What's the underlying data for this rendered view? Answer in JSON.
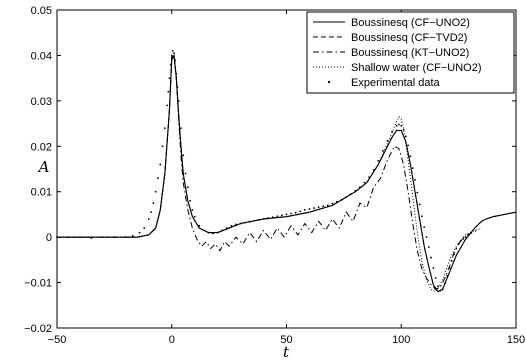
{
  "chart_data": {
    "type": "line",
    "title": "",
    "xlabel": "t",
    "ylabel": "A",
    "xlim": [
      -50,
      150
    ],
    "ylim": [
      -0.02,
      0.05
    ],
    "xticks": [
      "−50",
      "0",
      "50",
      "100",
      "150"
    ],
    "yticks": [
      "−0.02",
      "−0.01",
      "0",
      "0.01",
      "0.02",
      "0.03",
      "0.04",
      "0.05"
    ],
    "grid": false,
    "legend_position": "top-right",
    "series": [
      {
        "name": "Boussinesq (CF−UNO2)",
        "style": "solid",
        "x": [
          -50,
          -40,
          -30,
          -20,
          -15,
          -10,
          -7,
          -5,
          -3,
          -1,
          0,
          1,
          2,
          3,
          4,
          5,
          7,
          9,
          12,
          16,
          20,
          25,
          30,
          40,
          50,
          60,
          70,
          80,
          85,
          90,
          93,
          96,
          98,
          100,
          102,
          104,
          106,
          108,
          110,
          112,
          114,
          116,
          118,
          120,
          124,
          128,
          132,
          135,
          137,
          140,
          145,
          150
        ],
        "y": [
          0.0,
          0.0,
          0.0,
          0.0,
          0.0,
          0.0005,
          0.002,
          0.006,
          0.014,
          0.028,
          0.039,
          0.04,
          0.035,
          0.027,
          0.02,
          0.014,
          0.008,
          0.0045,
          0.002,
          0.001,
          0.001,
          0.002,
          0.003,
          0.004,
          0.0045,
          0.0055,
          0.007,
          0.01,
          0.012,
          0.016,
          0.019,
          0.022,
          0.0235,
          0.0235,
          0.021,
          0.016,
          0.01,
          0.004,
          -0.002,
          -0.0065,
          -0.0105,
          -0.012,
          -0.0115,
          -0.009,
          -0.004,
          -0.0005,
          0.002,
          0.0035,
          0.004,
          0.0045,
          0.005,
          0.0055
        ]
      },
      {
        "name": "Boussinesq (CF−TVD2)",
        "style": "dashed",
        "x": [
          -50,
          -40,
          -30,
          -20,
          -15,
          -10,
          -7,
          -5,
          -3,
          -1,
          0,
          1,
          2,
          3,
          4,
          5,
          7,
          9,
          12,
          16,
          20,
          25,
          30,
          40,
          50,
          60,
          70,
          80,
          85,
          90,
          93,
          96,
          98,
          100,
          102,
          104,
          106,
          108,
          110,
          112,
          114,
          116,
          118,
          120,
          124,
          128,
          132,
          135,
          137,
          140,
          145,
          150
        ],
        "y": [
          0.0,
          0.0,
          0.0,
          0.0,
          0.0,
          0.0005,
          0.002,
          0.006,
          0.014,
          0.028,
          0.0395,
          0.04,
          0.035,
          0.027,
          0.02,
          0.014,
          0.008,
          0.0045,
          0.002,
          0.001,
          0.001,
          0.002,
          0.003,
          0.004,
          0.0045,
          0.0055,
          0.007,
          0.01,
          0.012,
          0.016,
          0.019,
          0.022,
          0.0235,
          0.0235,
          0.021,
          0.016,
          0.01,
          0.004,
          -0.002,
          -0.0065,
          -0.0105,
          -0.012,
          -0.0115,
          -0.009,
          -0.004,
          -0.0005,
          0.002,
          0.0035,
          0.004,
          0.0045,
          0.005,
          0.0055
        ]
      },
      {
        "name": "Boussinesq (KT−UNO2)",
        "style": "dashdot",
        "x": [
          -50,
          -40,
          -30,
          -20,
          -15,
          -10,
          -7,
          -5,
          -3,
          -1,
          0,
          1,
          2,
          3,
          4,
          5,
          7,
          9,
          11,
          13,
          15,
          17,
          19,
          21,
          23,
          25,
          28,
          31,
          34,
          37,
          40,
          43,
          46,
          49,
          52,
          55,
          58,
          61,
          64,
          67,
          70,
          73,
          76,
          79,
          82,
          85,
          88,
          91,
          94,
          97,
          99,
          101,
          103,
          105,
          107,
          109,
          111,
          113,
          115,
          117,
          119,
          121,
          123,
          125,
          127,
          129,
          131,
          133
        ],
        "y": [
          0.0,
          0.0,
          0.0,
          0.0,
          0.0,
          0.0005,
          0.002,
          0.006,
          0.014,
          0.028,
          0.04,
          0.04,
          0.035,
          0.026,
          0.018,
          0.012,
          0.006,
          0.002,
          -0.0005,
          -0.002,
          -0.001,
          -0.0025,
          -0.0015,
          -0.003,
          -0.001,
          -0.002,
          0.0,
          -0.0015,
          0.001,
          -0.001,
          0.0015,
          -0.0005,
          0.002,
          0.0,
          0.0025,
          0.0005,
          0.003,
          0.001,
          0.0035,
          0.0015,
          0.004,
          0.002,
          0.0055,
          0.0035,
          0.0075,
          0.0065,
          0.011,
          0.013,
          0.017,
          0.02,
          0.0195,
          0.016,
          0.01,
          0.003,
          -0.003,
          -0.007,
          -0.009,
          -0.0105,
          -0.0115,
          -0.011,
          -0.009,
          -0.0065,
          -0.0035,
          -0.0015,
          0.0,
          0.0005,
          0.001,
          0.0015
        ]
      },
      {
        "name": "Shallow water (CF−UNO2)",
        "style": "dotted",
        "x": [
          -50,
          -40,
          -30,
          -20,
          -15,
          -10,
          -7,
          -5,
          -3,
          -1,
          0,
          1,
          2,
          3,
          4,
          5,
          7,
          9,
          12,
          16,
          20,
          25,
          30,
          40,
          50,
          60,
          70,
          80,
          85,
          90,
          93,
          96,
          98,
          99,
          100,
          101,
          103,
          105,
          107,
          109,
          111,
          113,
          115,
          117,
          119,
          121,
          124,
          128,
          132,
          135
        ],
        "y": [
          0.0,
          0.0,
          0.0,
          0.0,
          0.0,
          0.0005,
          0.002,
          0.006,
          0.014,
          0.028,
          0.0395,
          0.04,
          0.035,
          0.027,
          0.02,
          0.014,
          0.008,
          0.0045,
          0.002,
          0.001,
          0.001,
          0.002,
          0.003,
          0.004,
          0.0045,
          0.0055,
          0.007,
          0.01,
          0.012,
          0.016,
          0.0195,
          0.023,
          0.0255,
          0.0265,
          0.026,
          0.024,
          0.017,
          0.009,
          0.001,
          -0.0055,
          -0.0095,
          -0.0115,
          -0.012,
          -0.0105,
          -0.008,
          -0.005,
          -0.002,
          0.0005,
          0.0015,
          0.002
        ]
      },
      {
        "name": "Experimental data",
        "style": "points",
        "x": [
          -50,
          -45,
          -40,
          -35,
          -30,
          -25,
          -20,
          -17,
          -14,
          -12,
          -10,
          -9,
          -8,
          -7,
          -6,
          -5,
          -4,
          -3,
          -2,
          -1.5,
          -1,
          -0.5,
          0,
          0.5,
          1,
          1.5,
          2,
          2.5,
          3,
          4,
          5,
          6,
          7,
          8,
          9,
          10,
          12,
          14,
          16,
          18,
          20,
          22,
          24,
          26,
          28,
          30,
          32,
          34,
          36,
          38,
          40,
          42,
          44,
          46,
          48,
          50,
          52,
          54,
          56,
          58,
          60,
          62,
          64,
          66,
          68,
          70,
          72,
          74,
          76,
          78,
          80,
          82,
          84,
          86,
          88,
          90,
          92,
          94,
          96,
          98,
          99,
          100,
          101,
          102,
          103,
          104,
          105,
          106,
          107,
          108,
          109,
          110,
          111,
          112,
          113,
          114,
          115,
          116,
          117,
          118,
          119,
          120,
          121,
          122,
          123,
          124,
          125,
          126,
          127,
          128
        ],
        "y": [
          0.0,
          0.0,
          0.0,
          -0.0002,
          0.0,
          0.0,
          0.0,
          0.0003,
          0.001,
          0.002,
          0.004,
          0.0055,
          0.0075,
          0.01,
          0.013,
          0.016,
          0.02,
          0.024,
          0.029,
          0.032,
          0.035,
          0.038,
          0.04,
          0.041,
          0.0405,
          0.039,
          0.036,
          0.033,
          0.03,
          0.024,
          0.018,
          0.014,
          0.011,
          0.008,
          0.006,
          0.0045,
          0.0025,
          0.0015,
          0.001,
          0.0008,
          0.001,
          0.0015,
          0.002,
          0.0025,
          0.0028,
          0.003,
          0.0032,
          0.0034,
          0.0036,
          0.0038,
          0.004,
          0.0042,
          0.0044,
          0.0046,
          0.0048,
          0.005,
          0.0052,
          0.0054,
          0.0057,
          0.006,
          0.0062,
          0.0064,
          0.0066,
          0.0068,
          0.007,
          0.0074,
          0.0078,
          0.0082,
          0.0088,
          0.0095,
          0.0102,
          0.011,
          0.012,
          0.0132,
          0.0148,
          0.0168,
          0.019,
          0.0212,
          0.0232,
          0.0245,
          0.0248,
          0.0245,
          0.0236,
          0.0222,
          0.0202,
          0.0178,
          0.0152,
          0.0126,
          0.0098,
          0.0072,
          0.0046,
          0.0022,
          0.0,
          -0.0022,
          -0.0045,
          -0.0068,
          -0.009,
          -0.0108,
          -0.0118,
          -0.0115,
          -0.0102,
          -0.0085,
          -0.0068,
          -0.0052,
          -0.0038,
          -0.0025,
          -0.0015,
          -0.0008,
          -0.0004,
          0.0
        ]
      }
    ]
  }
}
